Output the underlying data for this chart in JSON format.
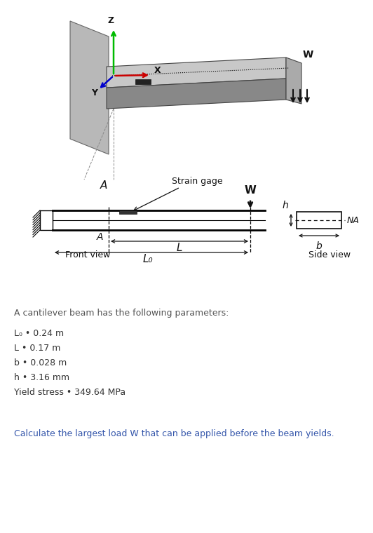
{
  "bg_color": "#ffffff",
  "title_text": "A cantilever beam has the following parameters:",
  "title_color": "#555555",
  "param_color": "#333333",
  "question_color": "#3355aa",
  "question": "Calculate the largest load W that can be applied before the beam yields.",
  "front_view_label": "Front view",
  "side_view_label": "Side view",
  "strain_gage_label": "Strain gage",
  "Z_label": "Z",
  "Y_label": "Y",
  "X_label": "X",
  "W_label": "W",
  "NA_label": "NA",
  "L_label": "L",
  "Lo_label": "L₀",
  "A_label": "A",
  "h_label": "h",
  "b_label": "b",
  "wall_color": "#a0a0a0",
  "beam_top_color": "#c0c0c0",
  "beam_side_color": "#808080",
  "beam_end_color": "#b0b0b0"
}
